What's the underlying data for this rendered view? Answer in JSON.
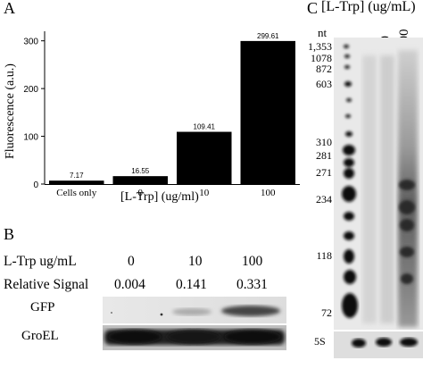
{
  "panel_a": {
    "letter": "A",
    "chart_data": {
      "type": "bar",
      "categories": [
        "Cells only",
        "0",
        "10",
        "100"
      ],
      "values": [
        7.17,
        16.55,
        109.41,
        299.61
      ],
      "value_labels": [
        "7.17",
        "16.55",
        "109.41",
        "299.61"
      ],
      "xlabel": "[L-Trp] (ug/ml)",
      "ylabel": "Fluorescence (a.u.)",
      "ylim": [
        0,
        320
      ],
      "yticks": [
        0,
        100,
        200,
        300
      ],
      "ytick_labels": [
        "0",
        "100",
        "200",
        "300"
      ],
      "bar_color": "#000000",
      "grid": false
    }
  },
  "panel_b": {
    "letter": "B",
    "header_label": "L-Trp ug/mL",
    "concentrations": [
      "0",
      "10",
      "100"
    ],
    "signal_label": "Relative Signal",
    "signals": [
      "0.004",
      "0.141",
      "0.331"
    ],
    "blots": [
      "GFP",
      "GroEL"
    ]
  },
  "panel_c": {
    "letter": "C",
    "title": "[L-Trp] (ug/mL)",
    "lanes": [
      "0",
      "10",
      "100"
    ],
    "unit_label": "nt",
    "markers": [
      "1,353",
      "1078",
      "872",
      "603",
      "310",
      "281",
      "271",
      "234",
      "118",
      "72"
    ],
    "bottom_label": "5S"
  }
}
